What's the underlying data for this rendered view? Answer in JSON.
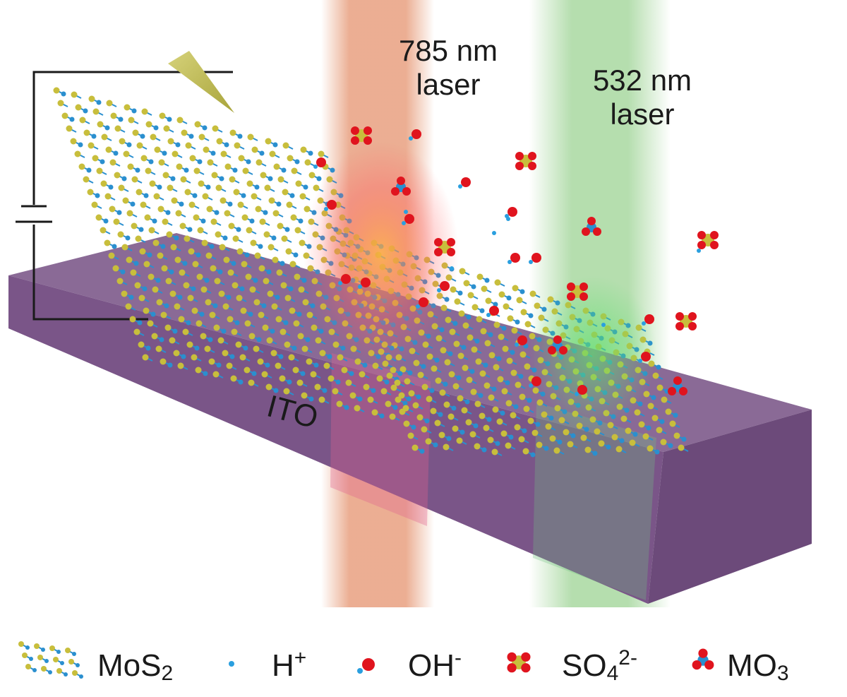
{
  "lasers": {
    "red": {
      "line1": "785 nm",
      "line2": "laser",
      "color": "#e8a080"
    },
    "green": {
      "line1": "532 nm",
      "line2": "laser",
      "color": "#a8d8a0"
    }
  },
  "substrate": {
    "label": "ITO",
    "color": "#7a5588"
  },
  "legend": {
    "mos2": {
      "base": "MoS",
      "sub": "2"
    },
    "h": {
      "base": "H",
      "sup": "+"
    },
    "oh": {
      "base": "OH",
      "sup": "-"
    },
    "so4": {
      "base": "SO",
      "sub": "4",
      "sup": "2-"
    },
    "mo3": {
      "base": "MO",
      "sub": "3"
    }
  },
  "colors": {
    "sulfur": "#c8be3c",
    "molybdenum": "#2a8fcf",
    "oxygen": "#e0141e",
    "hydrogen": "#2a9fdf"
  }
}
